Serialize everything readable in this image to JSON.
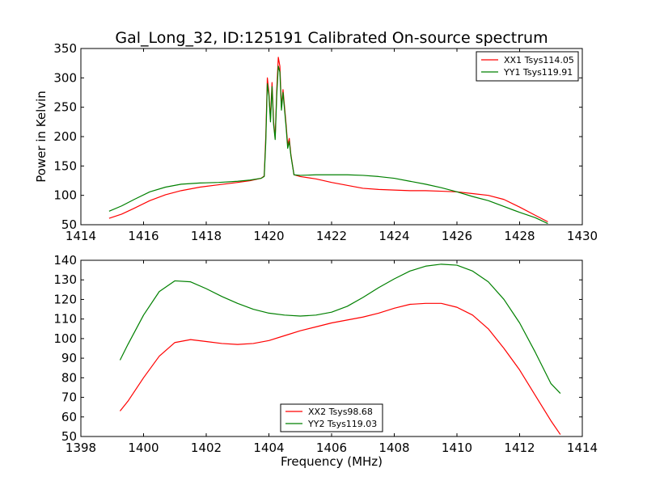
{
  "chart_data": [
    {
      "type": "line",
      "title": "Gal_Long_32, ID:125191 Calibrated On-source spectrum",
      "xlabel": "",
      "ylabel": "Power in Kelvin",
      "xlim": [
        1414,
        1430
      ],
      "ylim": [
        50,
        350
      ],
      "xticks": [
        1414,
        1416,
        1418,
        1420,
        1422,
        1424,
        1426,
        1428,
        1430
      ],
      "yticks": [
        50,
        100,
        150,
        200,
        250,
        300,
        350
      ],
      "legend_position": "upper right",
      "series": [
        {
          "name": "XX1 Tsys114.05",
          "color": "#ff0000",
          "points": [
            [
              1414.9,
              61
            ],
            [
              1415.3,
              68
            ],
            [
              1415.7,
              78
            ],
            [
              1416.2,
              91
            ],
            [
              1416.7,
              101
            ],
            [
              1417.2,
              108
            ],
            [
              1417.8,
              114
            ],
            [
              1418.4,
              118
            ],
            [
              1419.0,
              122
            ],
            [
              1419.4,
              125
            ],
            [
              1419.75,
              129
            ],
            [
              1419.85,
              133
            ],
            [
              1419.9,
              200
            ],
            [
              1419.95,
              300
            ],
            [
              1420.0,
              275
            ],
            [
              1420.05,
              230
            ],
            [
              1420.1,
              292
            ],
            [
              1420.15,
              225
            ],
            [
              1420.2,
              198
            ],
            [
              1420.25,
              280
            ],
            [
              1420.3,
              335
            ],
            [
              1420.35,
              320
            ],
            [
              1420.4,
              250
            ],
            [
              1420.45,
              280
            ],
            [
              1420.5,
              250
            ],
            [
              1420.55,
              220
            ],
            [
              1420.6,
              185
            ],
            [
              1420.65,
              197
            ],
            [
              1420.7,
              170
            ],
            [
              1420.8,
              135
            ],
            [
              1421.0,
              132
            ],
            [
              1421.5,
              128
            ],
            [
              1422.0,
              122
            ],
            [
              1422.5,
              117
            ],
            [
              1423.0,
              112
            ],
            [
              1423.5,
              110
            ],
            [
              1424.0,
              109
            ],
            [
              1424.5,
              108
            ],
            [
              1425.0,
              108
            ],
            [
              1425.5,
              107
            ],
            [
              1426.0,
              106
            ],
            [
              1426.5,
              103
            ],
            [
              1427.0,
              100
            ],
            [
              1427.5,
              93
            ],
            [
              1428.0,
              80
            ],
            [
              1428.5,
              66
            ],
            [
              1428.9,
              55
            ]
          ]
        },
        {
          "name": "YY1 Tsys119.91",
          "color": "#008000",
          "points": [
            [
              1414.9,
              73
            ],
            [
              1415.3,
              82
            ],
            [
              1415.7,
              93
            ],
            [
              1416.2,
              106
            ],
            [
              1416.7,
              114
            ],
            [
              1417.2,
              119
            ],
            [
              1417.8,
              121
            ],
            [
              1418.4,
              122
            ],
            [
              1419.0,
              124
            ],
            [
              1419.4,
              126
            ],
            [
              1419.75,
              129
            ],
            [
              1419.85,
              132
            ],
            [
              1419.9,
              190
            ],
            [
              1419.95,
              290
            ],
            [
              1420.0,
              270
            ],
            [
              1420.05,
              225
            ],
            [
              1420.1,
              285
            ],
            [
              1420.15,
              220
            ],
            [
              1420.2,
              195
            ],
            [
              1420.25,
              270
            ],
            [
              1420.3,
              320
            ],
            [
              1420.35,
              310
            ],
            [
              1420.4,
              245
            ],
            [
              1420.45,
              275
            ],
            [
              1420.5,
              245
            ],
            [
              1420.55,
              215
            ],
            [
              1420.6,
              180
            ],
            [
              1420.65,
              192
            ],
            [
              1420.7,
              168
            ],
            [
              1420.8,
              135
            ],
            [
              1421.0,
              134
            ],
            [
              1421.5,
              135
            ],
            [
              1422.0,
              135
            ],
            [
              1422.5,
              135
            ],
            [
              1423.0,
              134
            ],
            [
              1423.5,
              132
            ],
            [
              1424.0,
              129
            ],
            [
              1424.5,
              124
            ],
            [
              1425.0,
              119
            ],
            [
              1425.5,
              113
            ],
            [
              1426.0,
              106
            ],
            [
              1426.5,
              98
            ],
            [
              1427.0,
              91
            ],
            [
              1427.5,
              81
            ],
            [
              1428.0,
              71
            ],
            [
              1428.5,
              62
            ],
            [
              1428.9,
              52
            ]
          ]
        }
      ]
    },
    {
      "type": "line",
      "title": "",
      "xlabel": "Frequency (MHz)",
      "ylabel": "",
      "xlim": [
        1398,
        1414
      ],
      "ylim": [
        50,
        140
      ],
      "xticks": [
        1398,
        1400,
        1402,
        1404,
        1406,
        1408,
        1410,
        1412,
        1414
      ],
      "yticks": [
        50,
        60,
        70,
        80,
        90,
        100,
        110,
        120,
        130,
        140
      ],
      "legend_position": "lower center",
      "series": [
        {
          "name": "XX2 Tsys98.68",
          "color": "#ff0000",
          "points": [
            [
              1399.25,
              63
            ],
            [
              1399.5,
              68
            ],
            [
              1400.0,
              80
            ],
            [
              1400.5,
              91
            ],
            [
              1401.0,
              98
            ],
            [
              1401.5,
              99.5
            ],
            [
              1402.0,
              98.5
            ],
            [
              1402.5,
              97.5
            ],
            [
              1403.0,
              97
            ],
            [
              1403.5,
              97.5
            ],
            [
              1404.0,
              99
            ],
            [
              1404.5,
              101.5
            ],
            [
              1405.0,
              104
            ],
            [
              1405.5,
              106
            ],
            [
              1406.0,
              108
            ],
            [
              1406.5,
              109.5
            ],
            [
              1407.0,
              111
            ],
            [
              1407.5,
              113
            ],
            [
              1408.0,
              115.5
            ],
            [
              1408.5,
              117.5
            ],
            [
              1409.0,
              118
            ],
            [
              1409.5,
              118
            ],
            [
              1410.0,
              116
            ],
            [
              1410.5,
              112
            ],
            [
              1411.0,
              105
            ],
            [
              1411.5,
              95
            ],
            [
              1412.0,
              84
            ],
            [
              1412.5,
              71
            ],
            [
              1413.0,
              58
            ],
            [
              1413.3,
              51
            ]
          ]
        },
        {
          "name": "YY2 Tsys119.03",
          "color": "#008000",
          "points": [
            [
              1399.25,
              89
            ],
            [
              1399.5,
              97
            ],
            [
              1400.0,
              112
            ],
            [
              1400.5,
              124
            ],
            [
              1401.0,
              129.5
            ],
            [
              1401.5,
              129
            ],
            [
              1402.0,
              125.5
            ],
            [
              1402.5,
              121.5
            ],
            [
              1403.0,
              118
            ],
            [
              1403.5,
              115
            ],
            [
              1404.0,
              113
            ],
            [
              1404.5,
              112
            ],
            [
              1405.0,
              111.5
            ],
            [
              1405.5,
              112
            ],
            [
              1406.0,
              113.5
            ],
            [
              1406.5,
              116.5
            ],
            [
              1407.0,
              121
            ],
            [
              1407.5,
              126
            ],
            [
              1408.0,
              130.5
            ],
            [
              1408.5,
              134.5
            ],
            [
              1409.0,
              137
            ],
            [
              1409.5,
              138
            ],
            [
              1410.0,
              137.5
            ],
            [
              1410.5,
              134.5
            ],
            [
              1411.0,
              129
            ],
            [
              1411.5,
              120
            ],
            [
              1412.0,
              108
            ],
            [
              1412.5,
              93
            ],
            [
              1413.0,
              77
            ],
            [
              1413.3,
              72
            ]
          ]
        }
      ]
    }
  ]
}
